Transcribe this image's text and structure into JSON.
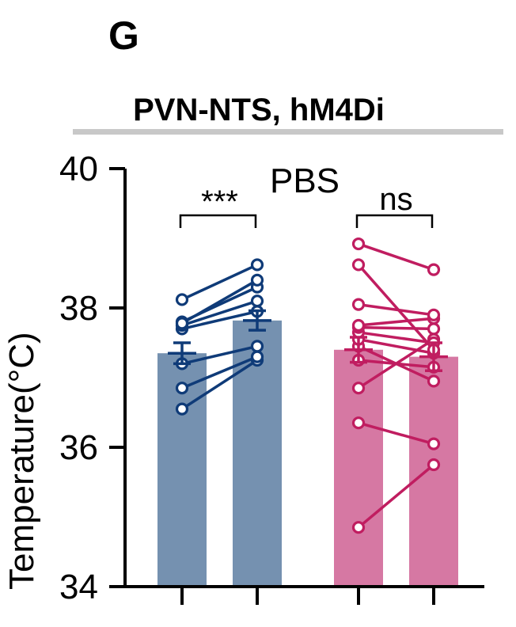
{
  "panel_letter": "G",
  "chart_data": {
    "type": "bar",
    "title": "PVN-NTS, hM4Di",
    "subtitle": "PBS",
    "ylabel": "Temperature(°C)",
    "ylim": [
      34,
      40
    ],
    "yticks": [
      34,
      36,
      38,
      40
    ],
    "grid": false,
    "groups": [
      {
        "color": "#7591b0",
        "line_color": "#0f3b78",
        "bars": [
          {
            "value": 37.35,
            "sem": 0.15
          },
          {
            "value": 37.82,
            "sem": 0.14
          }
        ],
        "subjects": [
          [
            36.55,
            37.25
          ],
          [
            36.85,
            37.3
          ],
          [
            37.2,
            37.45
          ],
          [
            37.7,
            37.95
          ],
          [
            37.75,
            38.1
          ],
          [
            37.8,
            38.3
          ],
          [
            37.78,
            38.4
          ],
          [
            38.12,
            38.62
          ]
        ],
        "significance": "***"
      },
      {
        "color": "#d678a3",
        "line_color": "#c01d60",
        "bars": [
          {
            "value": 37.4,
            "sem": 0.18
          },
          {
            "value": 37.3,
            "sem": 0.2
          }
        ],
        "subjects": [
          [
            34.85,
            35.75
          ],
          [
            36.35,
            36.05
          ],
          [
            36.85,
            37.55
          ],
          [
            37.25,
            37.15
          ],
          [
            37.45,
            36.95
          ],
          [
            37.55,
            37.35
          ],
          [
            37.65,
            37.5
          ],
          [
            37.72,
            37.7
          ],
          [
            37.75,
            37.85
          ],
          [
            38.05,
            37.9
          ],
          [
            38.62,
            37.4
          ],
          [
            38.92,
            38.55
          ]
        ],
        "significance": "ns"
      }
    ]
  }
}
